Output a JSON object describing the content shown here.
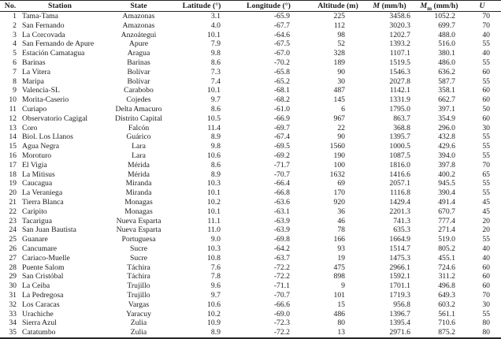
{
  "table": {
    "columns": [
      {
        "label": "No."
      },
      {
        "label": "Station"
      },
      {
        "label": "State"
      },
      {
        "label": "Latitude (°)"
      },
      {
        "label": "Longitude (°)"
      },
      {
        "label": "Altitude (m)"
      },
      {
        "symbol": "M",
        "unit": "(mm/h)"
      },
      {
        "symbol": "M",
        "subscript": "m",
        "unit": "(mm/h)"
      },
      {
        "symbol": "U"
      }
    ],
    "rows": [
      [
        "1",
        "Tama-Tama",
        "Amazonas",
        "3.1",
        "-65.9",
        "225",
        "3458.6",
        "1052.2",
        "70"
      ],
      [
        "2",
        "San Fernando",
        "Amazonas",
        "4.0",
        "-67.7",
        "112",
        "3020.3",
        "699.7",
        "70"
      ],
      [
        "3",
        "La Corcovada",
        "Anzoátegui",
        "10.1",
        "-64.6",
        "98",
        "1202.7",
        "488.0",
        "40"
      ],
      [
        "4",
        "San Fernando de Apure",
        "Apure",
        "7.9",
        "-67.5",
        "52",
        "1393.2",
        "516.0",
        "55"
      ],
      [
        "5",
        "Estación Camatagua",
        "Aragua",
        "9.8",
        "-67.0",
        "328",
        "1107.1",
        "380.1",
        "40"
      ],
      [
        "6",
        "Barinas",
        "Barinas",
        "8.6",
        "-70.2",
        "189",
        "1519.5",
        "486.0",
        "55"
      ],
      [
        "7",
        "La Vitera",
        "Bolívar",
        "7.3",
        "-65.8",
        "90",
        "1546.3",
        "636.2",
        "60"
      ],
      [
        "8",
        "Maripa",
        "Bolívar",
        "7.4",
        "-65.2",
        "30",
        "2027.8",
        "587.7",
        "55"
      ],
      [
        "9",
        "Valencia-SL",
        "Carabobo",
        "10.1",
        "-68.1",
        "487",
        "1142.1",
        "358.1",
        "60"
      ],
      [
        "10",
        "Morita-Caserio",
        "Cojedes",
        "9.7",
        "-68.2",
        "145",
        "1331.9",
        "662.7",
        "60"
      ],
      [
        "11",
        "Curiapo",
        "Delta Amacuro",
        "8.6",
        "-61.0",
        "6",
        "1795.0",
        "397.1",
        "50"
      ],
      [
        "12",
        "Observatorio Cagigal",
        "Distrito Capital",
        "10.5",
        "-66.9",
        "967",
        "863.7",
        "354.9",
        "60"
      ],
      [
        "13",
        "Coro",
        "Falcón",
        "11.4",
        "-69.7",
        "22",
        "368.8",
        "296.0",
        "30"
      ],
      [
        "14",
        "Biol. Los Llanos",
        "Guárico",
        "8.9",
        "-67.4",
        "90",
        "1395.7",
        "432.8",
        "55"
      ],
      [
        "15",
        "Agua Negra",
        "Lara",
        "9.8",
        "-69.5",
        "1560",
        "1000.5",
        "429.6",
        "55"
      ],
      [
        "16",
        "Moroturo",
        "Lara",
        "10.6",
        "-69.2",
        "190",
        "1087.5",
        "394.0",
        "55"
      ],
      [
        "17",
        "El Vigía",
        "Mérida",
        "8.6",
        "-71.7",
        "100",
        "1816.0",
        "397.8",
        "70"
      ],
      [
        "18",
        "La Mitisus",
        "Mérida",
        "8.9",
        "-70.7",
        "1632",
        "1416.6",
        "400.2",
        "65"
      ],
      [
        "19",
        "Caucagua",
        "Miranda",
        "10.3",
        "-66.4",
        "69",
        "2057.1",
        "945.5",
        "55"
      ],
      [
        "20",
        "La Veraniega",
        "Miranda",
        "10.1",
        "-66.8",
        "170",
        "1116.8",
        "390.4",
        "55"
      ],
      [
        "21",
        "Tierra Blanca",
        "Monagas",
        "10.2",
        "-63.6",
        "920",
        "1429.4",
        "491.4",
        "45"
      ],
      [
        "22",
        "Caripito",
        "Monagas",
        "10.1",
        "-63.1",
        "36",
        "2201.3",
        "670.7",
        "45"
      ],
      [
        "23",
        "Tacarigua",
        "Nueva Esparta",
        "11.1",
        "-63.9",
        "46",
        "741.3",
        "777.4",
        "20"
      ],
      [
        "24",
        "San Juan Bautista",
        "Nueva Esparta",
        "11.0",
        "-63.9",
        "78",
        "635.3",
        "271.4",
        "20"
      ],
      [
        "25",
        "Guanare",
        "Portuguesa",
        "9.0",
        "-69.8",
        "166",
        "1664.9",
        "519.0",
        "55"
      ],
      [
        "26",
        "Cancumare",
        "Sucre",
        "10.3",
        "-64.2",
        "93",
        "1514.7",
        "805.2",
        "40"
      ],
      [
        "27",
        "Cariaco-Muelle",
        "Sucre",
        "10.8",
        "-63.7",
        "19",
        "1475.3",
        "455.1",
        "40"
      ],
      [
        "28",
        "Puente Salom",
        "Táchira",
        "7.6",
        "-72.2",
        "475",
        "2966.1",
        "724.6",
        "60"
      ],
      [
        "29",
        "San Cristóbal",
        "Táchira",
        "7.8",
        "-72.2",
        "898",
        "1592.1",
        "311.2",
        "60"
      ],
      [
        "30",
        "La Ceiba",
        "Trujillo",
        "9.6",
        "-71.1",
        "9",
        "1701.1",
        "496.8",
        "60"
      ],
      [
        "31",
        "La Pedregosa",
        "Trujillo",
        "9.7",
        "-70.7",
        "101",
        "1719.3",
        "649.3",
        "70"
      ],
      [
        "32",
        "Los Caracas",
        "Vargas",
        "10.6",
        "-66.6",
        "15",
        "956.8",
        "603.2",
        "30"
      ],
      [
        "33",
        "Urachiche",
        "Yaracuy",
        "10.2",
        "-69.0",
        "486",
        "1396.7",
        "561.1",
        "55"
      ],
      [
        "34",
        "Sierra Azul",
        "Zulia",
        "10.9",
        "-72.3",
        "80",
        "1395.4",
        "710.6",
        "80"
      ],
      [
        "35",
        "Catatumbo",
        "Zulia",
        "8.9",
        "-72.2",
        "13",
        "2971.6",
        "875.2",
        "80"
      ]
    ]
  }
}
